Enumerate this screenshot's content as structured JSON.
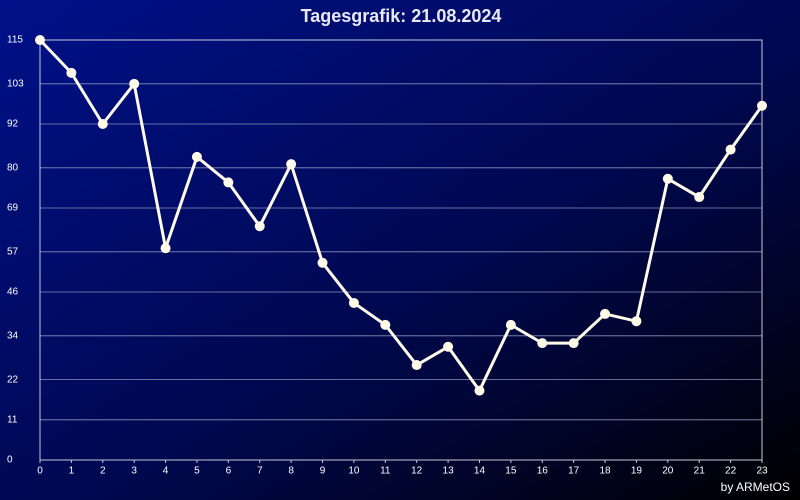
{
  "chart_data": {
    "type": "line",
    "title": "Tagesgrafik: 21.08.2024",
    "footer": "by ARMetOS",
    "x": [
      0,
      1,
      2,
      3,
      4,
      5,
      6,
      7,
      8,
      9,
      10,
      11,
      12,
      13,
      14,
      15,
      16,
      17,
      18,
      19,
      20,
      21,
      22,
      23
    ],
    "series": [
      {
        "color": "#fffbe8",
        "values": [
          115,
          106,
          92,
          103,
          58,
          83,
          76,
          64,
          81,
          54,
          43,
          37,
          26,
          31,
          19,
          37,
          32,
          32,
          40,
          38,
          77,
          72,
          85,
          97
        ]
      }
    ],
    "xlim": [
      0,
      23
    ],
    "xticks": [
      0,
      1,
      2,
      3,
      4,
      5,
      6,
      7,
      8,
      9,
      10,
      11,
      12,
      13,
      14,
      15,
      16,
      17,
      18,
      19,
      20,
      21,
      22,
      23
    ],
    "ylim": [
      0,
      115
    ],
    "yticks": [
      0,
      11,
      22,
      34,
      46,
      57,
      69,
      80,
      92,
      103,
      115
    ],
    "grid": true
  }
}
